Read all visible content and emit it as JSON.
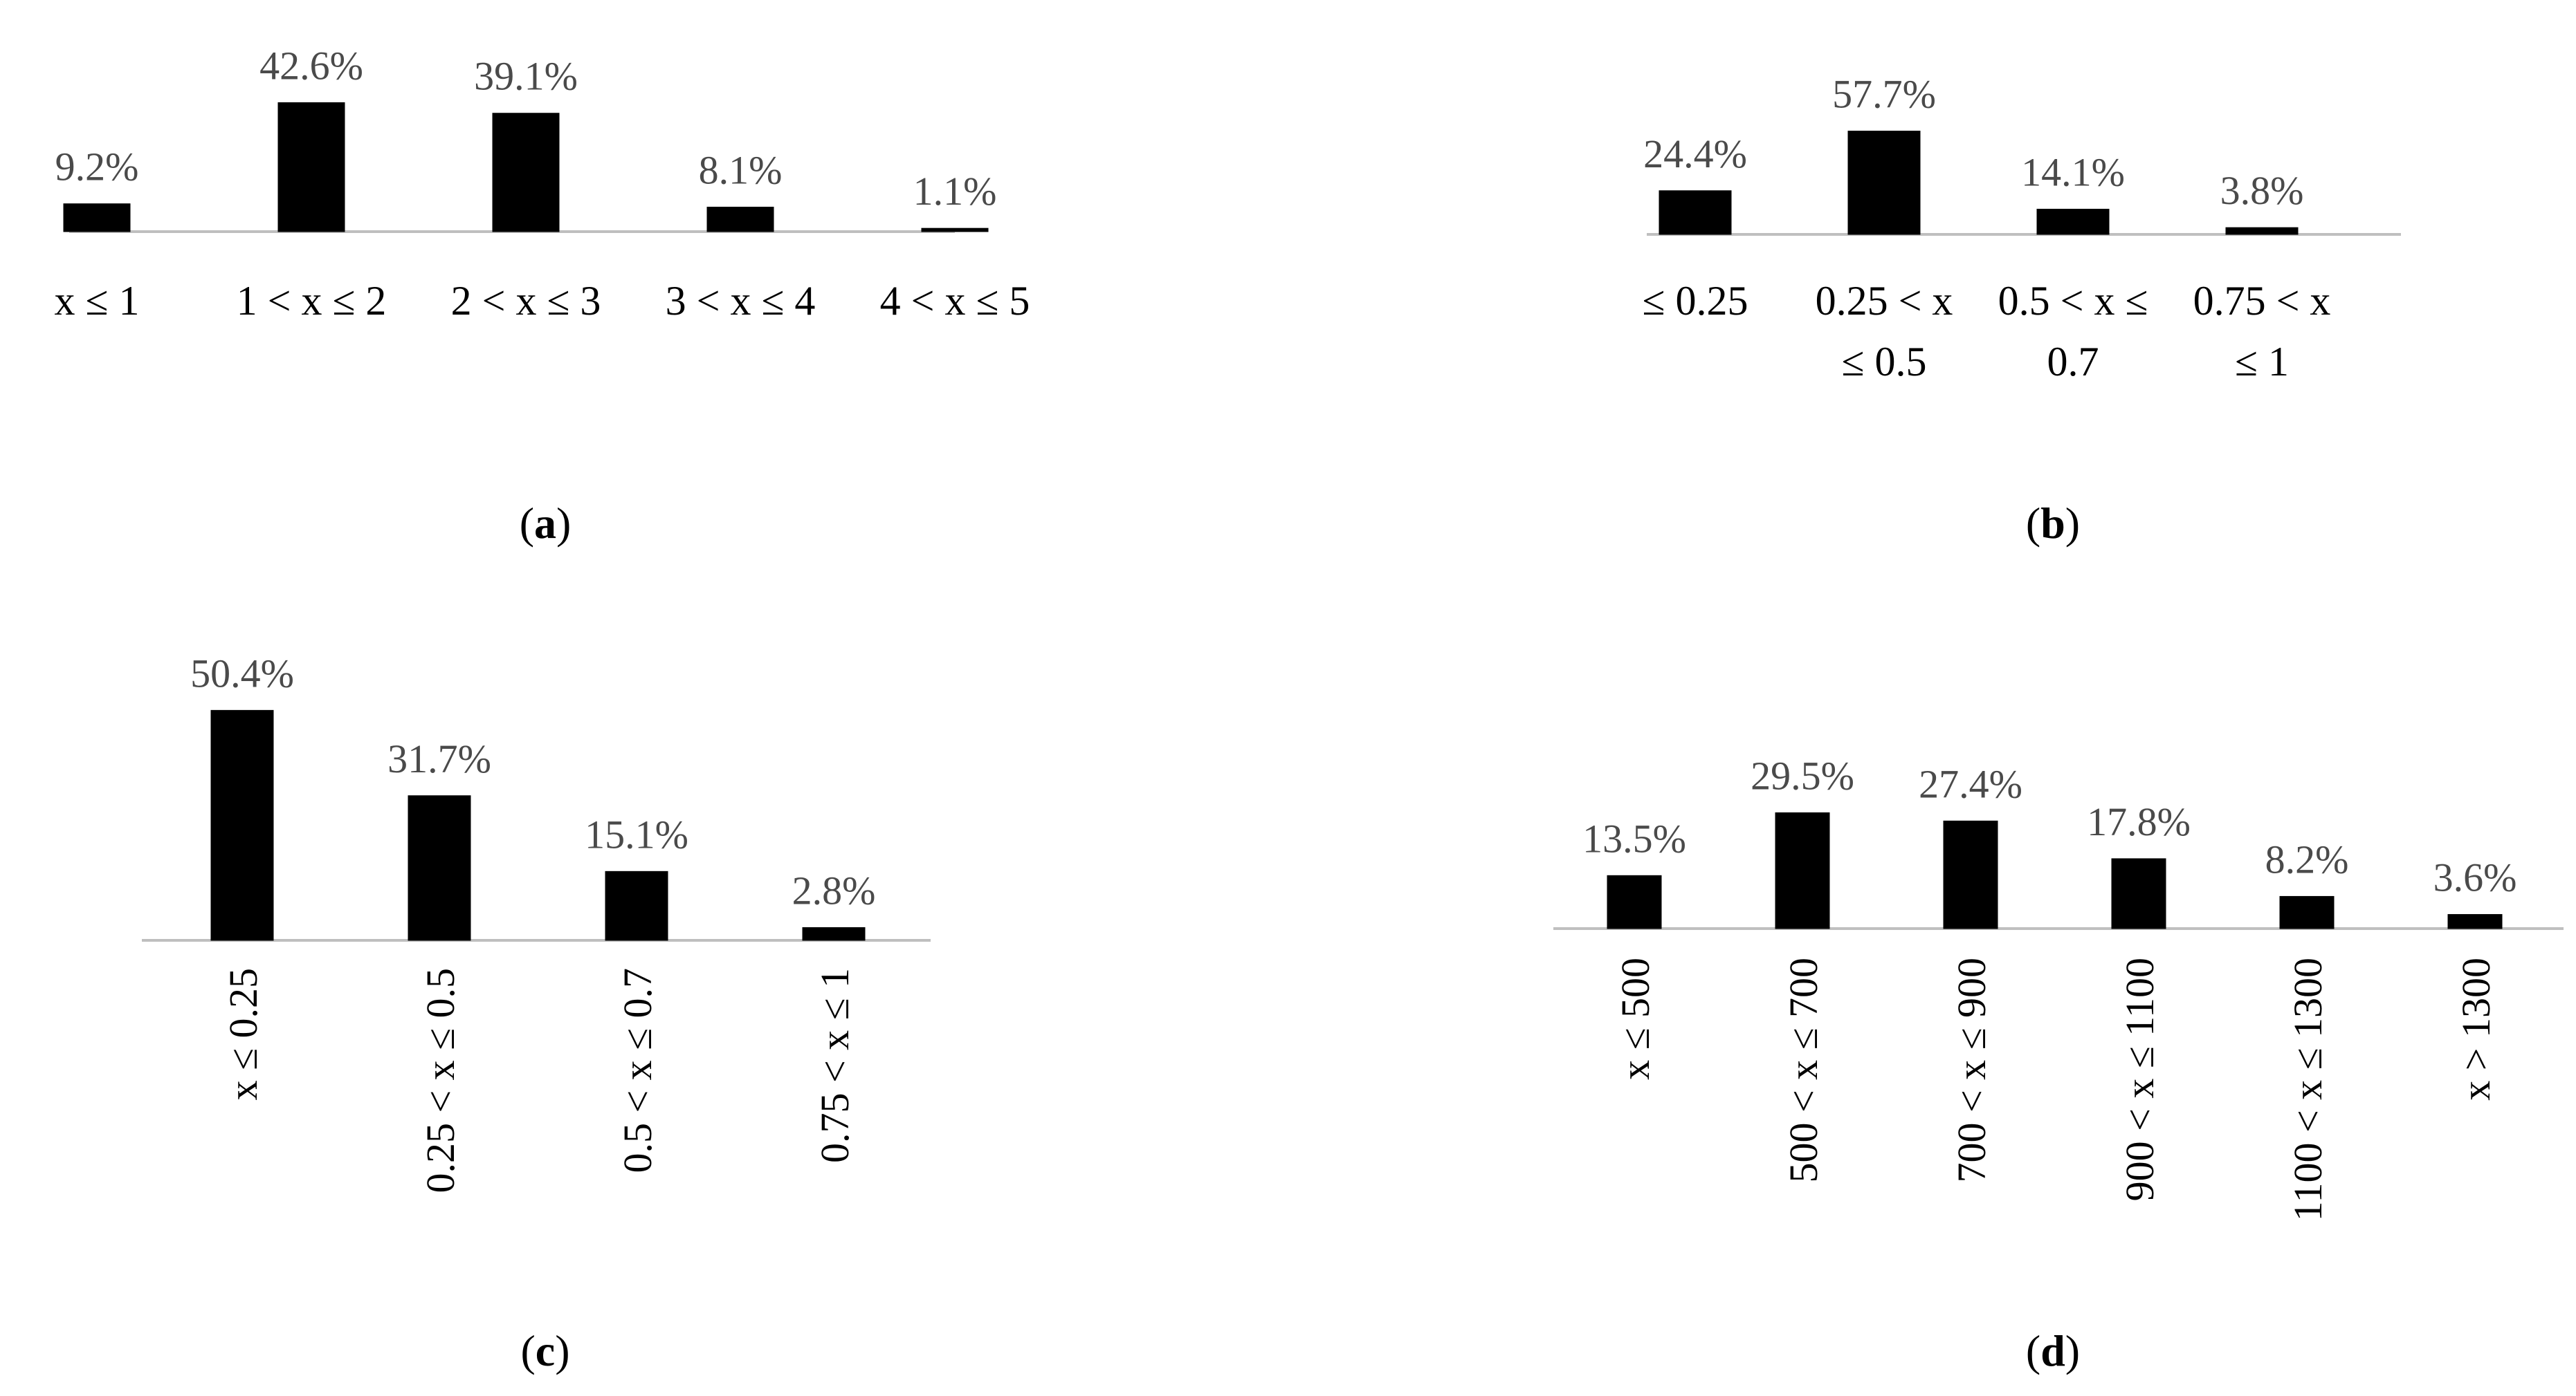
{
  "chart_data": [
    {
      "type": "bar",
      "panel": "a",
      "caption_letter": "a",
      "categories": [
        "x ≤ 1",
        "1 < x ≤ 2",
        "2 < x ≤ 3",
        "3 < x ≤ 4",
        "4 < x ≤ 5"
      ],
      "values": [
        9.2,
        42.6,
        39.1,
        8.1,
        1.1
      ],
      "data_labels": [
        "9.2%",
        "42.6%",
        "39.1%",
        "8.1%",
        "1.1%"
      ],
      "tick_orientation": "horizontal",
      "title": "",
      "xlabel": "",
      "ylabel": "",
      "grid": false,
      "legend": "none",
      "bar_color": "#000000"
    },
    {
      "type": "bar",
      "panel": "b",
      "caption_letter": "b",
      "categories": [
        [
          "≤ 0.25"
        ],
        [
          "0.25 < x",
          "≤ 0.5"
        ],
        [
          "0.5 < x ≤",
          "0.7"
        ],
        [
          "0.75 < x",
          "≤ 1"
        ]
      ],
      "values": [
        24.4,
        57.7,
        14.1,
        3.8
      ],
      "data_labels": [
        "24.4%",
        "57.7%",
        "14.1%",
        "3.8%"
      ],
      "tick_orientation": "horizontal",
      "title": "",
      "xlabel": "",
      "ylabel": "",
      "grid": false,
      "legend": "none",
      "bar_color": "#000000"
    },
    {
      "type": "bar",
      "panel": "c",
      "caption_letter": "c",
      "categories": [
        "x ≤ 0.25",
        "0.25 < x ≤ 0.5",
        "0.5 < x ≤ 0.7",
        "0.75 < x ≤ 1"
      ],
      "values": [
        50.4,
        31.7,
        15.1,
        2.8
      ],
      "data_labels": [
        "50.4%",
        "31.7%",
        "15.1%",
        "2.8%"
      ],
      "tick_orientation": "vertical",
      "title": "",
      "xlabel": "",
      "ylabel": "",
      "grid": false,
      "legend": "none",
      "bar_color": "#000000"
    },
    {
      "type": "bar",
      "panel": "d",
      "caption_letter": "d",
      "categories": [
        "x ≤ 500",
        "500 < x ≤ 700",
        "700 < x ≤ 900",
        "900 < x ≤ 1100",
        "1100 < x ≤ 1300",
        "x > 1300"
      ],
      "values": [
        13.5,
        29.5,
        27.4,
        17.8,
        8.2,
        3.6
      ],
      "data_labels": [
        "13.5%",
        "29.5%",
        "27.4%",
        "17.8%",
        "8.2%",
        "3.6%"
      ],
      "tick_orientation": "vertical",
      "title": "",
      "xlabel": "",
      "ylabel": "",
      "grid": false,
      "legend": "none",
      "bar_color": "#000000"
    }
  ]
}
